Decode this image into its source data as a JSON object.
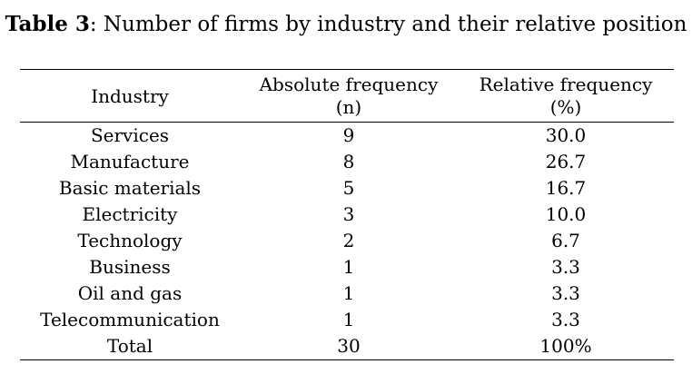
{
  "caption": {
    "label": "Table 3",
    "text": ": Number of firms by industry and their relative position"
  },
  "table": {
    "headers": {
      "industry": "Industry",
      "absolute_line1": "Absolute frequency",
      "absolute_line2": "(n)",
      "relative_line1": "Relative frequency",
      "relative_line2": "(%)"
    },
    "rows": [
      {
        "industry": "Services",
        "absolute": "9",
        "relative": "30.0"
      },
      {
        "industry": "Manufacture",
        "absolute": "8",
        "relative": "26.7"
      },
      {
        "industry": "Basic materials",
        "absolute": "5",
        "relative": "16.7"
      },
      {
        "industry": "Electricity",
        "absolute": "3",
        "relative": "10.0"
      },
      {
        "industry": "Technology",
        "absolute": "2",
        "relative": "6.7"
      },
      {
        "industry": "Business",
        "absolute": "1",
        "relative": "3.3"
      },
      {
        "industry": "Oil and gas",
        "absolute": "1",
        "relative": "3.3"
      },
      {
        "industry": "Telecommunication",
        "absolute": "1",
        "relative": "3.3"
      },
      {
        "industry": "Total",
        "absolute": "30",
        "relative": "100%"
      }
    ]
  }
}
